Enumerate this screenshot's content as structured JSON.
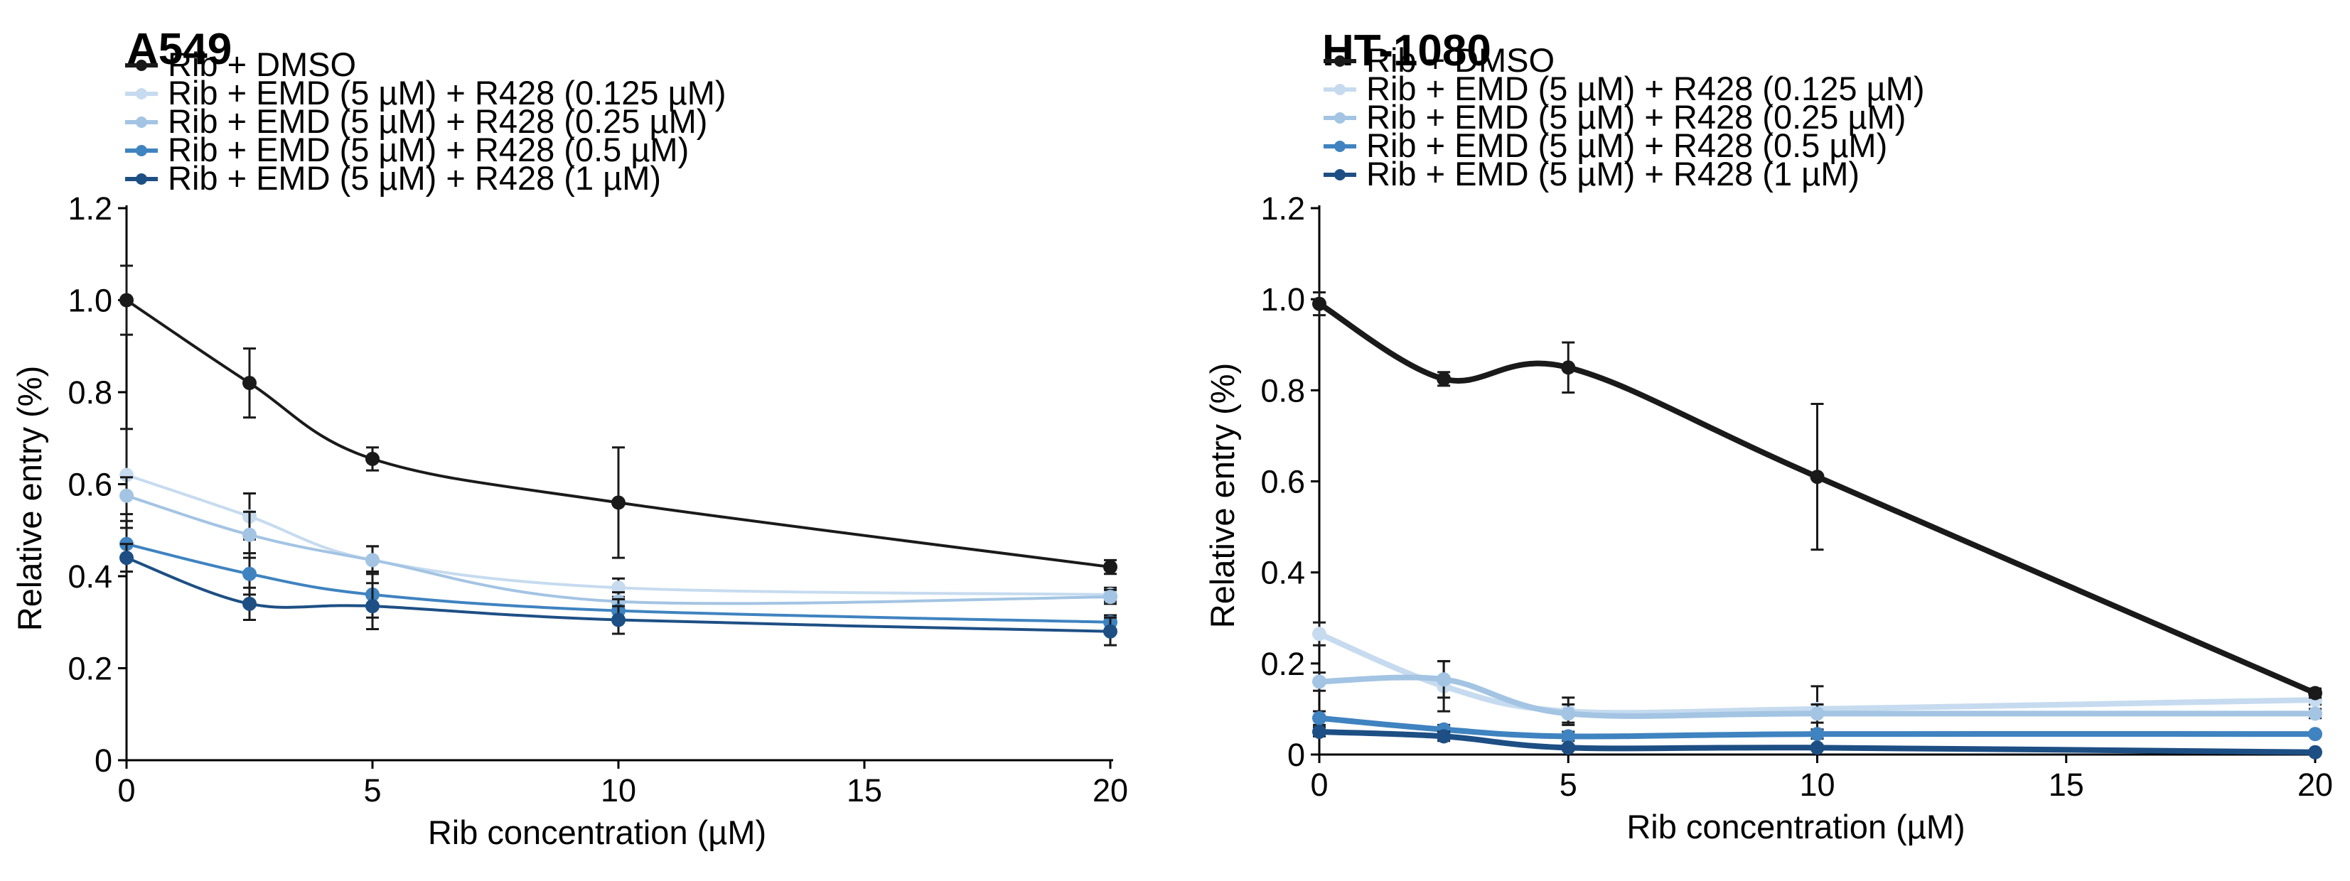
{
  "chart_data": [
    {
      "type": "line",
      "title": "A549",
      "xlabel": "Rib concentration (µM)",
      "ylabel": "Relative entry (%)",
      "xlim": [
        0,
        20
      ],
      "ylim": [
        0,
        1.2
      ],
      "xticks": [
        0,
        5,
        10,
        15,
        20
      ],
      "xtick_labels": [
        "0",
        "5",
        "10",
        "15",
        "20"
      ],
      "yticks": [
        0,
        0.2,
        0.4,
        0.6,
        0.8,
        1.0,
        1.2
      ],
      "ytick_labels": [
        "0",
        "0.2",
        "0.4",
        "0.6",
        "0.8",
        "1.0",
        "1.2"
      ],
      "x": [
        0,
        2.5,
        5,
        10,
        20
      ],
      "series": [
        {
          "name": "Rib + DMSO",
          "color": "#1a1a1a",
          "values": [
            1.0,
            0.82,
            0.655,
            0.56,
            0.42
          ],
          "errors": [
            0.075,
            0.075,
            0.025,
            0.12,
            0.015
          ]
        },
        {
          "name": "Rib + EMD (5 µM) + R428 (0.125 µM)",
          "color": "#c6dbef",
          "values": [
            0.62,
            0.53,
            0.435,
            0.375,
            0.36
          ],
          "errors": [
            0.1,
            0.05,
            0.03,
            0.02,
            0.015
          ]
        },
        {
          "name": "Rib + EMD (5 µM) + R428 (0.25 µM)",
          "color": "#a3c4e3",
          "values": [
            0.575,
            0.49,
            0.435,
            0.345,
            0.355
          ],
          "errors": [
            0.04,
            0.05,
            0.03,
            0.02,
            0.015
          ]
        },
        {
          "name": "Rib + EMD (5 µM) + R428 (0.5 µM)",
          "color": "#3f83c0",
          "values": [
            0.47,
            0.405,
            0.36,
            0.325,
            0.3
          ],
          "errors": [
            0.035,
            0.045,
            0.05,
            0.025,
            0.015
          ]
        },
        {
          "name": "Rib + EMD (5 µM) + R428 (1 µM)",
          "color": "#1d4f84",
          "values": [
            0.44,
            0.34,
            0.335,
            0.305,
            0.28
          ],
          "errors": [
            0.03,
            0.035,
            0.05,
            0.03,
            0.03
          ]
        }
      ]
    },
    {
      "type": "line",
      "title": "HT-1080",
      "xlabel": "Rib concentration (µM)",
      "ylabel": "Relative entry (%)",
      "xlim": [
        0,
        20
      ],
      "ylim": [
        0,
        1.2
      ],
      "xticks": [
        0,
        5,
        10,
        15,
        20
      ],
      "xtick_labels": [
        "0",
        "5",
        "10",
        "15",
        "20"
      ],
      "yticks": [
        0,
        0.2,
        0.4,
        0.6,
        0.8,
        1.0,
        1.2
      ],
      "ytick_labels": [
        "0",
        "0.2",
        "0.4",
        "0.6",
        "0.8",
        "1.0",
        "1.2"
      ],
      "x": [
        0,
        2.5,
        5,
        10,
        20
      ],
      "series": [
        {
          "name": "Rib + DMSO",
          "color": "#1a1a1a",
          "values": [
            0.99,
            0.825,
            0.85,
            0.61,
            0.135
          ],
          "errors": [
            0.025,
            0.015,
            0.055,
            0.16,
            0.01
          ]
        },
        {
          "name": "Rib + EMD (5 µM) + R428 (0.125 µM)",
          "color": "#c6dbef",
          "values": [
            0.265,
            0.15,
            0.095,
            0.1,
            0.12
          ],
          "errors": [
            0.025,
            0.055,
            0.03,
            0.05,
            0.01
          ]
        },
        {
          "name": "Rib + EMD (5 µM) + R428 (0.25 µM)",
          "color": "#a3c4e3",
          "values": [
            0.16,
            0.165,
            0.09,
            0.09,
            0.09
          ],
          "errors": [
            0.02,
            0.04,
            0.02,
            0.02,
            0.01
          ]
        },
        {
          "name": "Rib + EMD (5 µM) + R428 (0.5 µM)",
          "color": "#3f83c0",
          "values": [
            0.08,
            0.055,
            0.04,
            0.045,
            0.045
          ],
          "errors": [
            0.015,
            0.01,
            0.01,
            0.01,
            0.005
          ]
        },
        {
          "name": "Rib + EMD (5 µM) + R428 (1 µM)",
          "color": "#1d4f84",
          "values": [
            0.05,
            0.04,
            0.015,
            0.015,
            0.005
          ],
          "errors": [
            0.01,
            0.01,
            0.005,
            0.005,
            0.003
          ]
        }
      ]
    }
  ]
}
